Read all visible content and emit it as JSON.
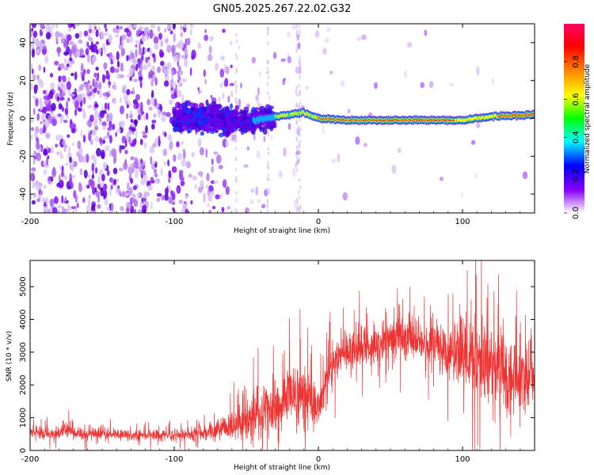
{
  "chart_data": [
    {
      "type": "heatmap",
      "title": "GN05.2025.267.22.02.G32",
      "xlabel": "Height of straight line (km)",
      "ylabel": "Frequency (Hz)",
      "xlim": [
        -200,
        150
      ],
      "ylim": [
        -50,
        50
      ],
      "xticks": [
        -200,
        -100,
        0,
        100
      ],
      "yticks": [
        -40,
        -20,
        0,
        20,
        40
      ],
      "colorbar": {
        "label": "Normalized spectral amplitude",
        "range": [
          0,
          1
        ],
        "ticks": [
          0,
          0.2,
          0.4,
          0.6,
          0.8
        ],
        "tick_labels": [
          "0.0",
          "0.2",
          "0.4",
          "0.6",
          "0.8"
        ],
        "colormap": [
          "#ffffff",
          "#8800ff",
          "#0000ff",
          "#00ffff",
          "#00ff00",
          "#ffff00",
          "#ff8800",
          "#ff0000",
          "#ff0066"
        ]
      },
      "ridge": {
        "description_x": [
          -100,
          -70,
          -50,
          -30,
          -10,
          0,
          20,
          50,
          80,
          100,
          120,
          150
        ],
        "frequency_hz": [
          0,
          0,
          -2,
          1,
          3,
          0,
          -1,
          -1,
          -1,
          -1,
          1,
          2
        ]
      }
    },
    {
      "type": "line",
      "xlabel": "Height of straight line (km)",
      "ylabel": "SNR (10 * v/v)",
      "xlim": [
        -200,
        150
      ],
      "ylim": [
        0,
        5800
      ],
      "xticks": [
        -200,
        -100,
        0,
        100
      ],
      "yticks": [
        0,
        1000,
        2000,
        3000,
        4000,
        5000
      ],
      "series": [
        {
          "name": "SNR",
          "color": "#ee3333",
          "x": [
            -200,
            -190,
            -180,
            -175,
            -170,
            -160,
            -150,
            -140,
            -130,
            -120,
            -110,
            -100,
            -90,
            -80,
            -70,
            -60,
            -50,
            -40,
            -30,
            -20,
            -15,
            -10,
            -5,
            0,
            5,
            10,
            15,
            20,
            30,
            40,
            50,
            60,
            70,
            80,
            90,
            100,
            110,
            120,
            130,
            140,
            150
          ],
          "center": [
            600,
            520,
            500,
            700,
            520,
            500,
            520,
            480,
            470,
            470,
            480,
            480,
            520,
            560,
            650,
            750,
            900,
            1100,
            1300,
            1600,
            1700,
            1700,
            1400,
            1200,
            2000,
            2600,
            2900,
            3050,
            3200,
            3300,
            3350,
            3400,
            3350,
            3250,
            3100,
            2900,
            2800,
            2600,
            2400,
            2300,
            2200
          ],
          "spread": [
            250,
            230,
            220,
            400,
            230,
            220,
            230,
            220,
            210,
            210,
            230,
            260,
            300,
            340,
            420,
            600,
            800,
            1000,
            1100,
            1300,
            1400,
            1400,
            1200,
            1000,
            1000,
            1000,
            900,
            900,
            800,
            800,
            800,
            800,
            850,
            900,
            1100,
            1500,
            1700,
            1800,
            1800,
            1700,
            1600
          ]
        }
      ]
    }
  ]
}
